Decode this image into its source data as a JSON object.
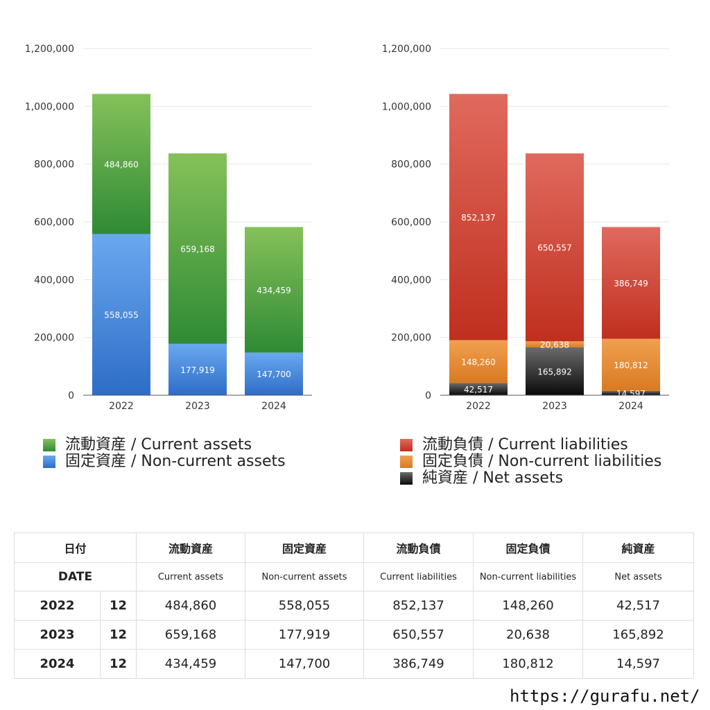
{
  "chart_data": [
    {
      "type": "bar",
      "stacked": true,
      "categories": [
        "2022",
        "2023",
        "2024"
      ],
      "ylim": [
        0,
        1200000
      ],
      "yticks": [
        "0",
        "200,000",
        "400,000",
        "600,000",
        "800,000",
        "1,000,000",
        "1,200,000"
      ],
      "grid": true,
      "series": [
        {
          "name": "固定資産 / Non-current assets",
          "values": [
            558055,
            177919,
            147700
          ],
          "labels": [
            "558,055",
            "177,919",
            "147,700"
          ],
          "color_top": "#6aa8f0",
          "color_bottom": "#2e6dc6"
        },
        {
          "name": "流動資産 / Current assets",
          "values": [
            484860,
            659168,
            434459
          ],
          "labels": [
            "484,860",
            "659,168",
            "434,459"
          ],
          "color_top": "#86c15a",
          "color_bottom": "#2f8a35"
        }
      ]
    },
    {
      "type": "bar",
      "stacked": true,
      "categories": [
        "2022",
        "2023",
        "2024"
      ],
      "ylim": [
        0,
        1200000
      ],
      "yticks": [
        "0",
        "200,000",
        "400,000",
        "600,000",
        "800,000",
        "1,000,000",
        "1,200,000"
      ],
      "grid": true,
      "series": [
        {
          "name": "純資産 / Net assets",
          "values": [
            42517,
            165892,
            14597
          ],
          "labels": [
            "42,517",
            "165,892",
            "14,597"
          ],
          "color_top": "#6b6b6b",
          "color_bottom": "#0a0a0a"
        },
        {
          "name": "固定負債 / Non-current liabilities",
          "values": [
            148260,
            20638,
            180812
          ],
          "labels": [
            "148,260",
            "20,638",
            "180,812"
          ],
          "color_top": "#f0a050",
          "color_bottom": "#d97a22"
        },
        {
          "name": "流動負債 / Current liabilities",
          "values": [
            852137,
            650557,
            386749
          ],
          "labels": [
            "852,137",
            "650,557",
            "386,749"
          ],
          "color_top": "#e06a5e",
          "color_bottom": "#bf2f1e"
        }
      ]
    }
  ],
  "legend_left": [
    {
      "label": "流動資産 / Current assets",
      "color": "#3a9a40"
    },
    {
      "label": "固定資産 / Non-current assets",
      "color": "#4a8ae0"
    }
  ],
  "legend_right": [
    {
      "label": "流動負債 / Current liabilities",
      "color": "#d44a3a"
    },
    {
      "label": "固定負債 / Non-current liabilities",
      "color": "#e58a35"
    },
    {
      "label": "純資産 / Net assets",
      "color": "#222222"
    }
  ],
  "table": {
    "header_jp": {
      "date": "日付",
      "c1": "流動資産",
      "c2": "固定資産",
      "c3": "流動負債",
      "c4": "固定負債",
      "c5": "純資産"
    },
    "header_en": {
      "date": "DATE",
      "c1": "Current assets",
      "c2": "Non-current assets",
      "c3": "Current liabilities",
      "c4": "Non-current liabilities",
      "c5": "Net assets"
    },
    "rows": [
      {
        "year": "2022",
        "month": "12",
        "c1": "484,860",
        "c2": "558,055",
        "c3": "852,137",
        "c4": "148,260",
        "c5": "42,517"
      },
      {
        "year": "2023",
        "month": "12",
        "c1": "659,168",
        "c2": "177,919",
        "c3": "650,557",
        "c4": "20,638",
        "c5": "165,892"
      },
      {
        "year": "2024",
        "month": "12",
        "c1": "434,459",
        "c2": "147,700",
        "c3": "386,749",
        "c4": "180,812",
        "c5": "14,597"
      }
    ]
  },
  "watermark": "https://gurafu.net/"
}
